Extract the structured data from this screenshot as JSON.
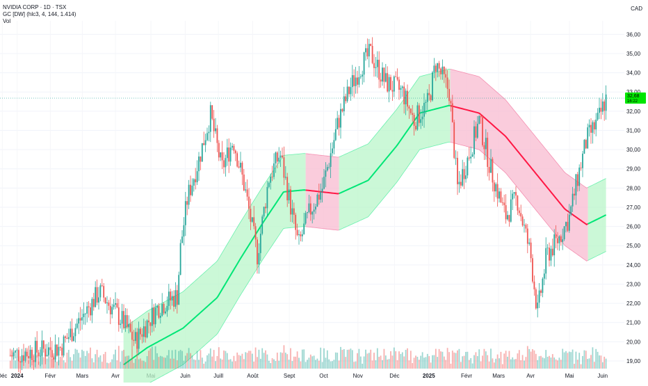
{
  "legend": {
    "symbol": "NVIDIA CORP · 1D · TSX",
    "indicator": "GC [DW] (hlc3, 4, 144, 1.414)",
    "volume": "Vol"
  },
  "currency": "CAD",
  "price_badge": {
    "price": "32,68",
    "countdown": "16:22"
  },
  "chart_data": {
    "type": "line",
    "title": "NVIDIA CORP · 1D · TSX",
    "ylim": [
      18.6,
      36.7
    ],
    "y_ticks": [
      "19,00",
      "20,00",
      "21,00",
      "22,00",
      "23,00",
      "24,00",
      "25,00",
      "26,00",
      "27,00",
      "28,00",
      "29,00",
      "30,00",
      "31,00",
      "32,00",
      "33,00",
      "34,00",
      "35,00",
      "36,00"
    ],
    "x_ticks": [
      "Déc",
      "2024",
      "Févr",
      "Mars",
      "Avr",
      "Mai",
      "Juin",
      "Juill",
      "Août",
      "Sept",
      "Oct",
      "Nov",
      "Déc",
      "2025",
      "Févr",
      "Mars",
      "Avr",
      "Mai",
      "Juin"
    ],
    "last_price": 32.68,
    "price_trend": [
      {
        "t": "2024-01-02",
        "v": 19.3
      },
      {
        "t": "2024-02-15",
        "v": 19.7
      },
      {
        "t": "2024-03-05",
        "v": 21.3
      },
      {
        "t": "2024-03-20",
        "v": 22.6
      },
      {
        "t": "2024-04-10",
        "v": 21.0
      },
      {
        "t": "2024-04-20",
        "v": 20.0
      },
      {
        "t": "2024-05-10",
        "v": 21.8
      },
      {
        "t": "2024-05-27",
        "v": 22.4
      },
      {
        "t": "2024-05-30",
        "v": 25.0
      },
      {
        "t": "2024-06-05",
        "v": 27.5
      },
      {
        "t": "2024-06-15",
        "v": 29.5
      },
      {
        "t": "2024-06-25",
        "v": 31.8
      },
      {
        "t": "2024-07-05",
        "v": 29.0
      },
      {
        "t": "2024-07-15",
        "v": 30.5
      },
      {
        "t": "2024-07-25",
        "v": 28.0
      },
      {
        "t": "2024-08-05",
        "v": 24.5
      },
      {
        "t": "2024-08-15",
        "v": 28.5
      },
      {
        "t": "2024-08-25",
        "v": 29.8
      },
      {
        "t": "2024-09-05",
        "v": 26.5
      },
      {
        "t": "2024-09-10",
        "v": 25.0
      },
      {
        "t": "2024-09-20",
        "v": 26.8
      },
      {
        "t": "2024-10-01",
        "v": 28.0
      },
      {
        "t": "2024-10-15",
        "v": 31.5
      },
      {
        "t": "2024-10-25",
        "v": 33.2
      },
      {
        "t": "2024-11-05",
        "v": 34.5
      },
      {
        "t": "2024-11-12",
        "v": 35.0
      },
      {
        "t": "2024-11-25",
        "v": 33.5
      },
      {
        "t": "2024-12-10",
        "v": 33.0
      },
      {
        "t": "2024-12-20",
        "v": 31.5
      },
      {
        "t": "2025-01-02",
        "v": 32.5
      },
      {
        "t": "2025-01-08",
        "v": 34.5
      },
      {
        "t": "2025-01-20",
        "v": 33.0
      },
      {
        "t": "2025-01-27",
        "v": 28.0
      },
      {
        "t": "2025-02-05",
        "v": 29.5
      },
      {
        "t": "2025-02-15",
        "v": 31.5
      },
      {
        "t": "2025-02-25",
        "v": 29.0
      },
      {
        "t": "2025-03-10",
        "v": 26.5
      },
      {
        "t": "2025-03-20",
        "v": 27.5
      },
      {
        "t": "2025-04-01",
        "v": 24.5
      },
      {
        "t": "2025-04-07",
        "v": 21.5
      },
      {
        "t": "2025-04-15",
        "v": 24.5
      },
      {
        "t": "2025-04-25",
        "v": 25.3
      },
      {
        "t": "2025-05-05",
        "v": 26.5
      },
      {
        "t": "2025-05-12",
        "v": 28.5
      },
      {
        "t": "2025-05-20",
        "v": 30.5
      },
      {
        "t": "2025-05-30",
        "v": 31.5
      },
      {
        "t": "2025-06-06",
        "v": 32.68
      }
    ],
    "channel": {
      "basis": [
        {
          "t": "2024-04-10",
          "v": 18.8
        },
        {
          "t": "2024-05-01",
          "v": 19.7
        },
        {
          "t": "2024-06-01",
          "v": 20.7
        },
        {
          "t": "2024-07-01",
          "v": 22.3
        },
        {
          "t": "2024-07-21",
          "v": 24.3
        },
        {
          "t": "2024-08-10",
          "v": 26.2
        },
        {
          "t": "2024-08-28",
          "v": 27.8
        },
        {
          "t": "2024-09-15",
          "v": 27.9
        },
        {
          "t": "2024-10-15",
          "v": 27.7
        },
        {
          "t": "2024-11-10",
          "v": 28.4
        },
        {
          "t": "2024-12-05",
          "v": 30.2
        },
        {
          "t": "2024-12-25",
          "v": 31.9
        },
        {
          "t": "2025-01-20",
          "v": 32.3
        },
        {
          "t": "2025-02-15",
          "v": 31.9
        },
        {
          "t": "2025-03-10",
          "v": 30.7
        },
        {
          "t": "2025-04-05",
          "v": 28.8
        },
        {
          "t": "2025-05-01",
          "v": 26.9
        },
        {
          "t": "2025-05-20",
          "v": 26.1
        },
        {
          "t": "2025-06-06",
          "v": 26.6
        }
      ],
      "width": 1.9
    },
    "colors": {
      "up": "#26a69a",
      "down": "#ef5350",
      "basis_up": "#00e676",
      "basis_down": "#ff1744",
      "band_up": "#b9f6ca",
      "band_down": "#f8bbd0",
      "badge": "#00e600"
    }
  }
}
